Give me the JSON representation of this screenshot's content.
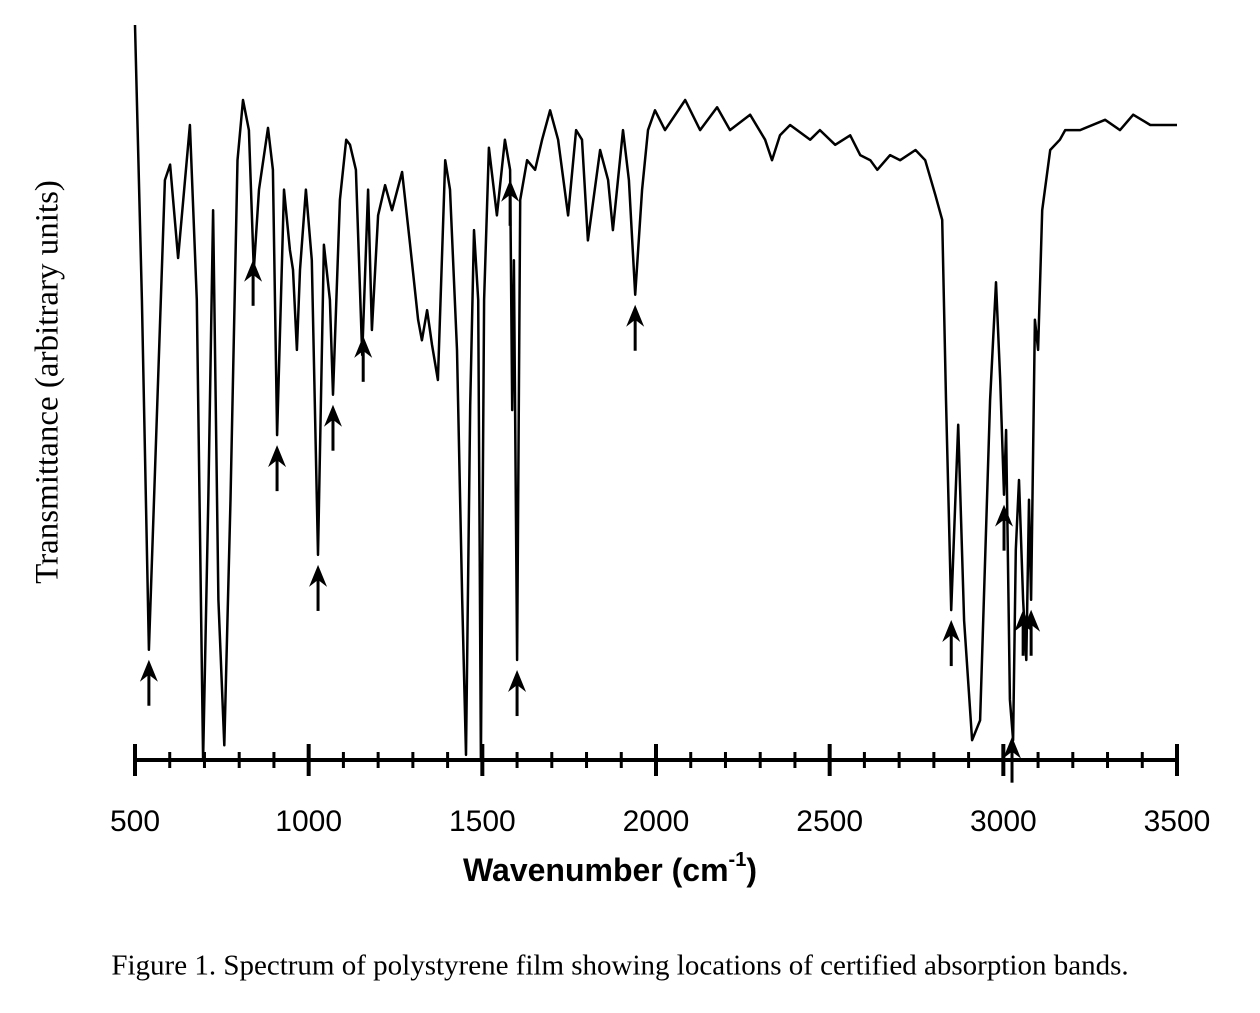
{
  "chart_data": {
    "type": "line",
    "y_label": "Transmittance  (arbitrary units)",
    "x_label": [
      "Wavenumber (cm",
      "-1",
      ")"
    ],
    "caption": "Figure 1.  Spectrum of polystyrene film showing locations of certified absorption bands.",
    "xlim": [
      500,
      3500
    ],
    "ylim": [
      0,
      100
    ],
    "xticks": [
      500,
      1000,
      1500,
      2000,
      2500,
      3000,
      3500
    ],
    "xminorticks": [
      600,
      700,
      800,
      900,
      1100,
      1200,
      1300,
      1400,
      1600,
      1700,
      1800,
      1900,
      2100,
      2200,
      2300,
      2400,
      2600,
      2700,
      2800,
      2900,
      3100,
      3200,
      3300,
      3400
    ],
    "x": [
      500,
      520,
      540,
      586,
      601,
      624,
      658,
      678,
      696,
      711,
      725,
      740,
      757,
      775,
      795,
      811,
      828,
      842,
      857,
      883,
      897,
      909,
      929,
      946,
      955,
      966,
      975,
      992,
      1009,
      1027,
      1044,
      1061,
      1070,
      1090,
      1108,
      1119,
      1136,
      1154,
      1171,
      1182,
      1200,
      1220,
      1240,
      1269,
      1292,
      1315,
      1326,
      1341,
      1355,
      1372,
      1393,
      1407,
      1427,
      1442,
      1453,
      1465,
      1476,
      1488,
      1496,
      1505,
      1519,
      1542,
      1565,
      1580,
      1586,
      1591,
      1600,
      1609,
      1629,
      1652,
      1672,
      1695,
      1718,
      1747,
      1770,
      1787,
      1804,
      1839,
      1862,
      1876,
      1905,
      1922,
      1940,
      1960,
      1977,
      1997,
      2026,
      2084,
      2127,
      2176,
      2213,
      2271,
      2314,
      2334,
      2357,
      2386,
      2444,
      2472,
      2516,
      2559,
      2588,
      2617,
      2637,
      2674,
      2703,
      2747,
      2775,
      2804,
      2824,
      2835,
      2850,
      2870,
      2887,
      2910,
      2933,
      2962,
      2979,
      2991,
      3002,
      3008,
      3019,
      3028,
      3036,
      3045,
      3057,
      3066,
      3074,
      3080,
      3091,
      3100,
      3112,
      3135,
      3163,
      3178,
      3221,
      3293,
      3336,
      3374,
      3423,
      3500
    ],
    "series": [
      {
        "name": "Polystyrene",
        "color": "#000000",
        "values": [
          100,
          62.6,
          15.0,
          78.9,
          81.0,
          68.3,
          86.4,
          62.6,
          0,
          35.4,
          74.8,
          21.8,
          2.0,
          35.4,
          81.6,
          89.8,
          85.7,
          66.7,
          77.6,
          86.0,
          80.3,
          44.2,
          77.6,
          69.4,
          66.7,
          55.8,
          66.7,
          77.6,
          68.0,
          27.9,
          70.1,
          62.6,
          49.7,
          76.2,
          84.4,
          83.7,
          80.3,
          55.1,
          77.6,
          58.5,
          74.1,
          78.2,
          74.8,
          80.0,
          70.1,
          59.9,
          57.1,
          61.2,
          56.5,
          51.7,
          81.6,
          77.6,
          55.8,
          21.8,
          0.7,
          48.3,
          72.1,
          62.6,
          0,
          62.6,
          83.3,
          74.1,
          84.4,
          80.3,
          47.6,
          68.0,
          13.6,
          76.2,
          81.6,
          80.3,
          84.4,
          88.4,
          84.4,
          74.1,
          85.7,
          84.4,
          70.7,
          83.0,
          78.9,
          72.1,
          85.7,
          78.9,
          63.3,
          77.6,
          85.7,
          88.4,
          85.7,
          89.8,
          85.7,
          88.8,
          85.7,
          87.8,
          84.4,
          81.6,
          85.0,
          86.4,
          84.4,
          85.7,
          83.7,
          85.0,
          82.3,
          81.6,
          80.3,
          82.3,
          81.6,
          83.0,
          81.6,
          76.9,
          73.5,
          49.0,
          20.4,
          45.6,
          19.0,
          2.7,
          5.4,
          49.0,
          65.0,
          51.7,
          36.1,
          44.9,
          8.2,
          2.7,
          28.6,
          38.1,
          21.8,
          13.6,
          35.4,
          21.8,
          59.9,
          55.8,
          74.8,
          83.0,
          84.4,
          85.7,
          85.7,
          87.1,
          85.7,
          87.8,
          86.4,
          86.4
        ]
      }
    ],
    "band_markers": [
      540,
      840,
      909,
      1027,
      1070,
      1157,
      1580,
      1600,
      1940,
      2850,
      3002,
      3025,
      3057,
      3080
    ]
  }
}
